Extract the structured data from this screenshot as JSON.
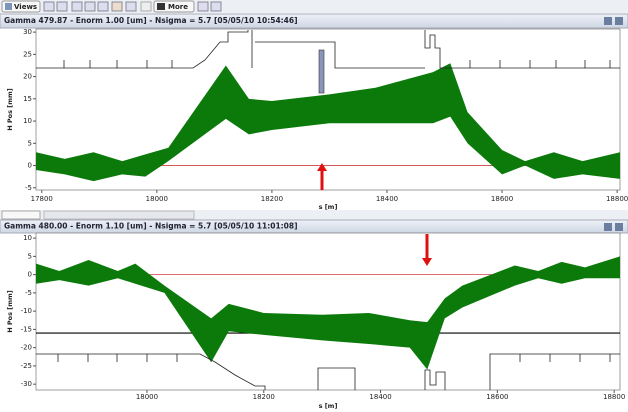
{
  "toolbar": {
    "views": "Views",
    "more": "More"
  },
  "panels": [
    {
      "title": "Gamma 479.87 - Enorm 1.00 [um] - Nsigma = 5.7  [05/05/10 10:54:46]"
    },
    {
      "title": "Gamma 480.00 - Enorm 1.10 [um] - Nsigma = 5.7  [05/05/10 11:01:08]"
    }
  ],
  "chart_data": [
    {
      "type": "band",
      "x_label": "s [m]",
      "y_label": "H Pos [mm]",
      "color": "#0b7a0b",
      "x": [
        17790,
        17840,
        17890,
        17940,
        17980,
        18020,
        18120,
        18160,
        18200,
        18300,
        18380,
        18480,
        18510,
        18540,
        18600,
        18640,
        18690,
        18740,
        18805
      ],
      "high": [
        3,
        1.5,
        3,
        1,
        2.5,
        4,
        22.5,
        15,
        14.5,
        16,
        17.5,
        21,
        23,
        12,
        3.5,
        1,
        3,
        1,
        3
      ],
      "low": [
        -1,
        -2,
        -3.5,
        -2,
        -2.5,
        1,
        10.5,
        7,
        8,
        9.5,
        9.5,
        9.5,
        11,
        5,
        -2,
        0,
        -3,
        -2,
        -3
      ],
      "xlim": [
        17790,
        18805
      ],
      "ylim": [
        -5.5,
        30.7
      ],
      "xticks": [
        17800,
        18000,
        18200,
        18400,
        18600,
        18800
      ],
      "yticks": [
        -5,
        0,
        5,
        10,
        15,
        20,
        25,
        30
      ],
      "hlines": [
        {
          "value": 0,
          "color": "#d04040"
        }
      ],
      "grid": false
    },
    {
      "type": "band",
      "x_label": "s [m]",
      "y_label": "H Pos [mm]",
      "color": "#0b7a0b",
      "x": [
        17810,
        17850,
        17900,
        17950,
        17980,
        18030,
        18110,
        18140,
        18200,
        18300,
        18380,
        18450,
        18480,
        18510,
        18540,
        18630,
        18670,
        18710,
        18750,
        18810
      ],
      "high": [
        3,
        1,
        4,
        1,
        3,
        -3,
        -12,
        -8,
        -10.5,
        -11,
        -10.5,
        -12.5,
        -13,
        -6.5,
        -3,
        2.5,
        1,
        3.5,
        2,
        5
      ],
      "low": [
        -2.5,
        -1.5,
        -3,
        -1,
        -2.5,
        -5,
        -24,
        -15.5,
        -16.5,
        -18,
        -19,
        -20,
        -26,
        -12,
        -9,
        -3,
        -1,
        -2.5,
        -1,
        -1
      ],
      "xlim": [
        17810,
        18810
      ],
      "ylim": [
        -31.6,
        11.4
      ],
      "xticks": [
        18000,
        18200,
        18400,
        18600,
        18800
      ],
      "yticks": [
        -30,
        -25,
        -20,
        -15,
        -10,
        -5,
        0,
        5,
        10
      ],
      "hlines": [
        {
          "value": 0,
          "color": "#d04040"
        },
        {
          "value": -16,
          "color": "#000000"
        }
      ],
      "grid": false
    }
  ]
}
